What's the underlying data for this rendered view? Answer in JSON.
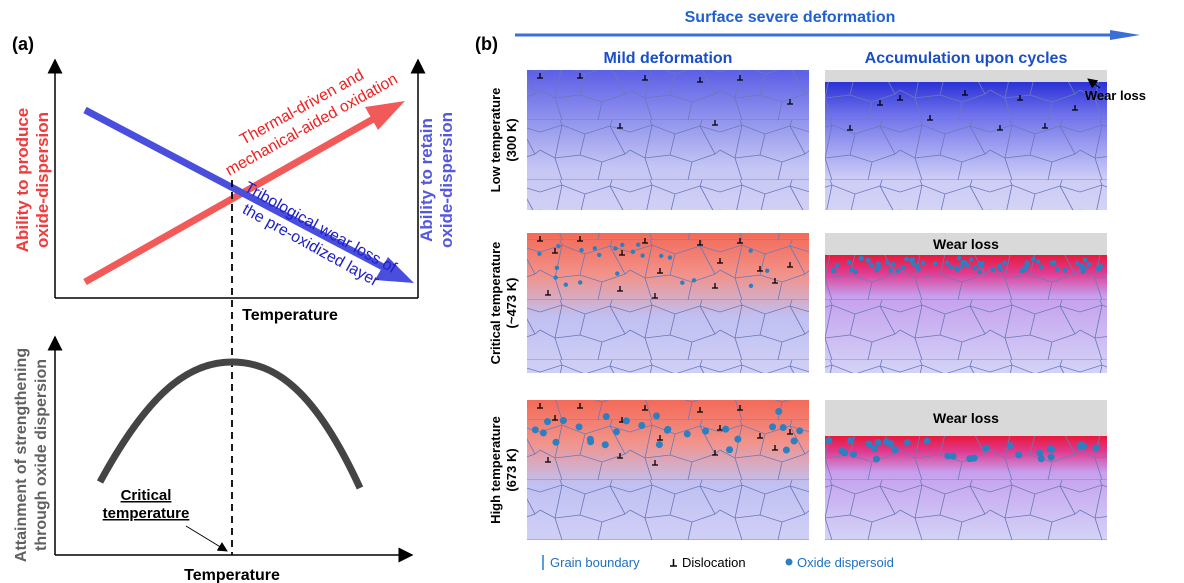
{
  "panel_a": {
    "label": "(a)",
    "top_plot": {
      "y_left_label": [
        "Ability to produce",
        "oxide-dispersion"
      ],
      "y_right_label": [
        "Ability to retain",
        "oxide-dispersion"
      ],
      "red_arrow_label": [
        "Thermal-driven and",
        "mechanical-aided oxidation"
      ],
      "blue_arrow_label": [
        "Tribological wear loss of",
        "the pre-oxidized layer"
      ],
      "x_label": "Temperature"
    },
    "bottom_plot": {
      "y_label": [
        "Attainment of strengthening",
        "through oxide dispersion"
      ],
      "annotation": [
        "Critical",
        "temperature"
      ],
      "x_label": "Temperature"
    }
  },
  "panel_b": {
    "label": "(b)",
    "top_arrow_label": "Surface severe deformation",
    "columns": [
      "Mild deformation",
      "Accumulation upon cycles"
    ],
    "rows": [
      [
        "Low temperature",
        "(300 K)"
      ],
      [
        "Critical temperature",
        "(~473 K)"
      ],
      [
        "High temperature",
        "(673 K)"
      ]
    ],
    "wear_loss": [
      "Wear loss",
      "Wear loss",
      "Wear loss"
    ],
    "legend": [
      "Grain boundary",
      "Dislocation",
      "Oxide dispersoid"
    ]
  }
}
